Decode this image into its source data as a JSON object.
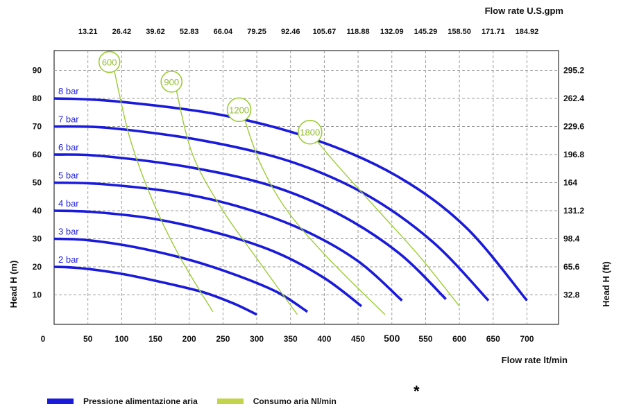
{
  "chart_data": {
    "type": "line",
    "x_title_bottom": "Flow rate  lt/min",
    "x_title_top": "Flow rate U.S.gpm",
    "y_title_left": "Head H (m)",
    "y_title_right": "Head H (ft)",
    "xlim": [
      0,
      730
    ],
    "ylim": [
      0,
      95
    ],
    "x_ticks": [
      0,
      50,
      100,
      150,
      200,
      250,
      300,
      350,
      400,
      450,
      500,
      550,
      600,
      650,
      700
    ],
    "x_tick_labels": [
      "0",
      "50",
      "100",
      "150",
      "200",
      "250",
      "300",
      "350",
      "400",
      "450",
      "500",
      "550",
      "600",
      "650",
      "700"
    ],
    "top_ticks": [
      50,
      100,
      150,
      200,
      250,
      300,
      350,
      400,
      450,
      500,
      550,
      600,
      650,
      700
    ],
    "top_tick_labels": [
      "13.21",
      "26.42",
      "39.62",
      "52.83",
      "66.04",
      "79.25",
      "92.46",
      "105.67",
      "118.88",
      "132.09",
      "145.29",
      "158.50",
      "171.71",
      "184.92"
    ],
    "y_ticks": [
      10,
      20,
      30,
      40,
      50,
      60,
      70,
      80,
      90
    ],
    "y_tick_labels": [
      "10",
      "20",
      "30",
      "40",
      "50",
      "60",
      "70",
      "80",
      "90"
    ],
    "right_tick_labels": [
      "32.8",
      "65.6",
      "98.4",
      "131.2",
      "164",
      "196.8",
      "229.6",
      "262.4",
      "295.2"
    ],
    "grid": true,
    "pressure_series": [
      {
        "name": "2 bar",
        "points": [
          [
            0,
            20
          ],
          [
            40,
            19.5
          ],
          [
            100,
            17.5
          ],
          [
            160,
            14.5
          ],
          [
            220,
            11
          ],
          [
            265,
            7
          ],
          [
            300,
            3
          ]
        ]
      },
      {
        "name": "3 bar",
        "points": [
          [
            0,
            30
          ],
          [
            50,
            29.5
          ],
          [
            120,
            27
          ],
          [
            200,
            22.5
          ],
          [
            270,
            17
          ],
          [
            330,
            11
          ],
          [
            375,
            4
          ]
        ]
      },
      {
        "name": "4 bar",
        "points": [
          [
            0,
            40
          ],
          [
            60,
            39.5
          ],
          [
            150,
            37
          ],
          [
            250,
            31.5
          ],
          [
            330,
            25
          ],
          [
            400,
            16
          ],
          [
            455,
            6
          ]
        ]
      },
      {
        "name": "5 bar",
        "points": [
          [
            0,
            50
          ],
          [
            70,
            49.5
          ],
          [
            180,
            46.5
          ],
          [
            280,
            41
          ],
          [
            370,
            33
          ],
          [
            450,
            22
          ],
          [
            515,
            8
          ]
        ]
      },
      {
        "name": "6 bar",
        "points": [
          [
            0,
            60
          ],
          [
            70,
            59.5
          ],
          [
            200,
            55.5
          ],
          [
            320,
            49
          ],
          [
            420,
            39
          ],
          [
            510,
            25
          ],
          [
            580,
            8.5
          ]
        ]
      },
      {
        "name": "7 bar",
        "points": [
          [
            0,
            70
          ],
          [
            80,
            69.5
          ],
          [
            220,
            65
          ],
          [
            350,
            57.5
          ],
          [
            460,
            46
          ],
          [
            560,
            29
          ],
          [
            643,
            8
          ]
        ]
      },
      {
        "name": "8 bar",
        "points": [
          [
            0,
            80
          ],
          [
            90,
            79
          ],
          [
            250,
            74
          ],
          [
            390,
            65
          ],
          [
            510,
            52
          ],
          [
            610,
            34
          ],
          [
            700,
            8
          ]
        ]
      }
    ],
    "air_series": [
      {
        "name": "600",
        "points": [
          [
            88,
            91
          ],
          [
            112,
            66
          ],
          [
            145,
            44
          ],
          [
            185,
            24
          ],
          [
            235,
            4
          ]
        ]
      },
      {
        "name": "900",
        "points": [
          [
            180,
            84
          ],
          [
            205,
            60
          ],
          [
            250,
            40
          ],
          [
            300,
            23
          ],
          [
            360,
            3
          ]
        ]
      },
      {
        "name": "1200",
        "points": [
          [
            280,
            74
          ],
          [
            305,
            57
          ],
          [
            345,
            40
          ],
          [
            410,
            22
          ],
          [
            490,
            3
          ]
        ]
      },
      {
        "name": "1800",
        "points": [
          [
            385,
            66
          ],
          [
            420,
            56
          ],
          [
            480,
            40
          ],
          [
            540,
            24
          ],
          [
            600,
            6
          ]
        ]
      }
    ],
    "pressure_color": "#1a1adc",
    "air_color": "#9ccc33",
    "label_color": "#2020e0"
  },
  "legend": {
    "pressure": "Pressione alimentazione aria",
    "air": "Consumo aria Nl/min"
  },
  "footnote_mark": "*"
}
